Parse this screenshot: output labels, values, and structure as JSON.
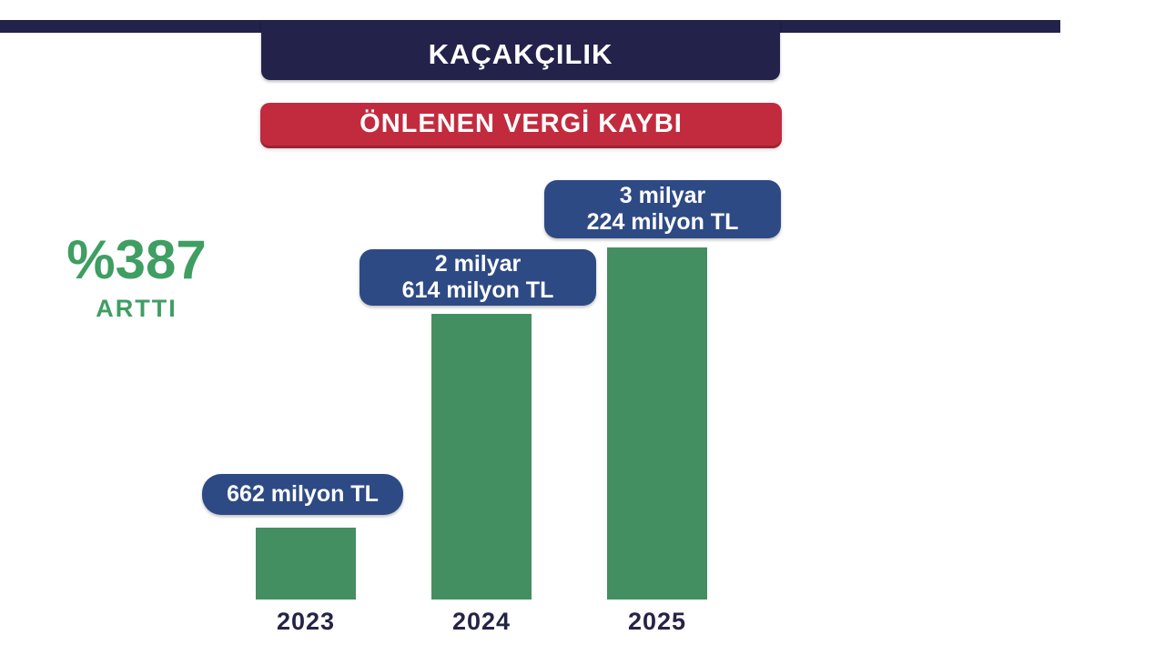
{
  "header": {
    "title": "KAÇAKÇILIK",
    "subtitle": "ÖNLENEN VERGİ KAYBI"
  },
  "highlight": {
    "percent": "%387",
    "caption": "ARTTI"
  },
  "colors": {
    "navy": "#22224a",
    "red_banner": "#c22b3e",
    "callout_blue": "#2e4a85",
    "bar_green": "#448f62",
    "highlight_green": "#3f9e62",
    "year_text": "#242447"
  },
  "chart_data": {
    "type": "bar",
    "title": "ÖNLENEN VERGİ KAYBI",
    "subtitle_context": "KAÇAKÇILIK",
    "categories": [
      "2023",
      "2024",
      "2025"
    ],
    "values": [
      662,
      2614,
      3224
    ],
    "unit": "milyon TL",
    "bar_labels": [
      [
        "662 milyon TL"
      ],
      [
        "2 milyar",
        "614 milyon TL"
      ],
      [
        "3 milyar",
        "224 milyon TL"
      ]
    ],
    "annotation": "%387 ARTTI",
    "ylim": [
      0,
      3224
    ],
    "grid": false,
    "legend": false,
    "bar_color": "#448f62",
    "label_box_color": "#2e4a85"
  }
}
